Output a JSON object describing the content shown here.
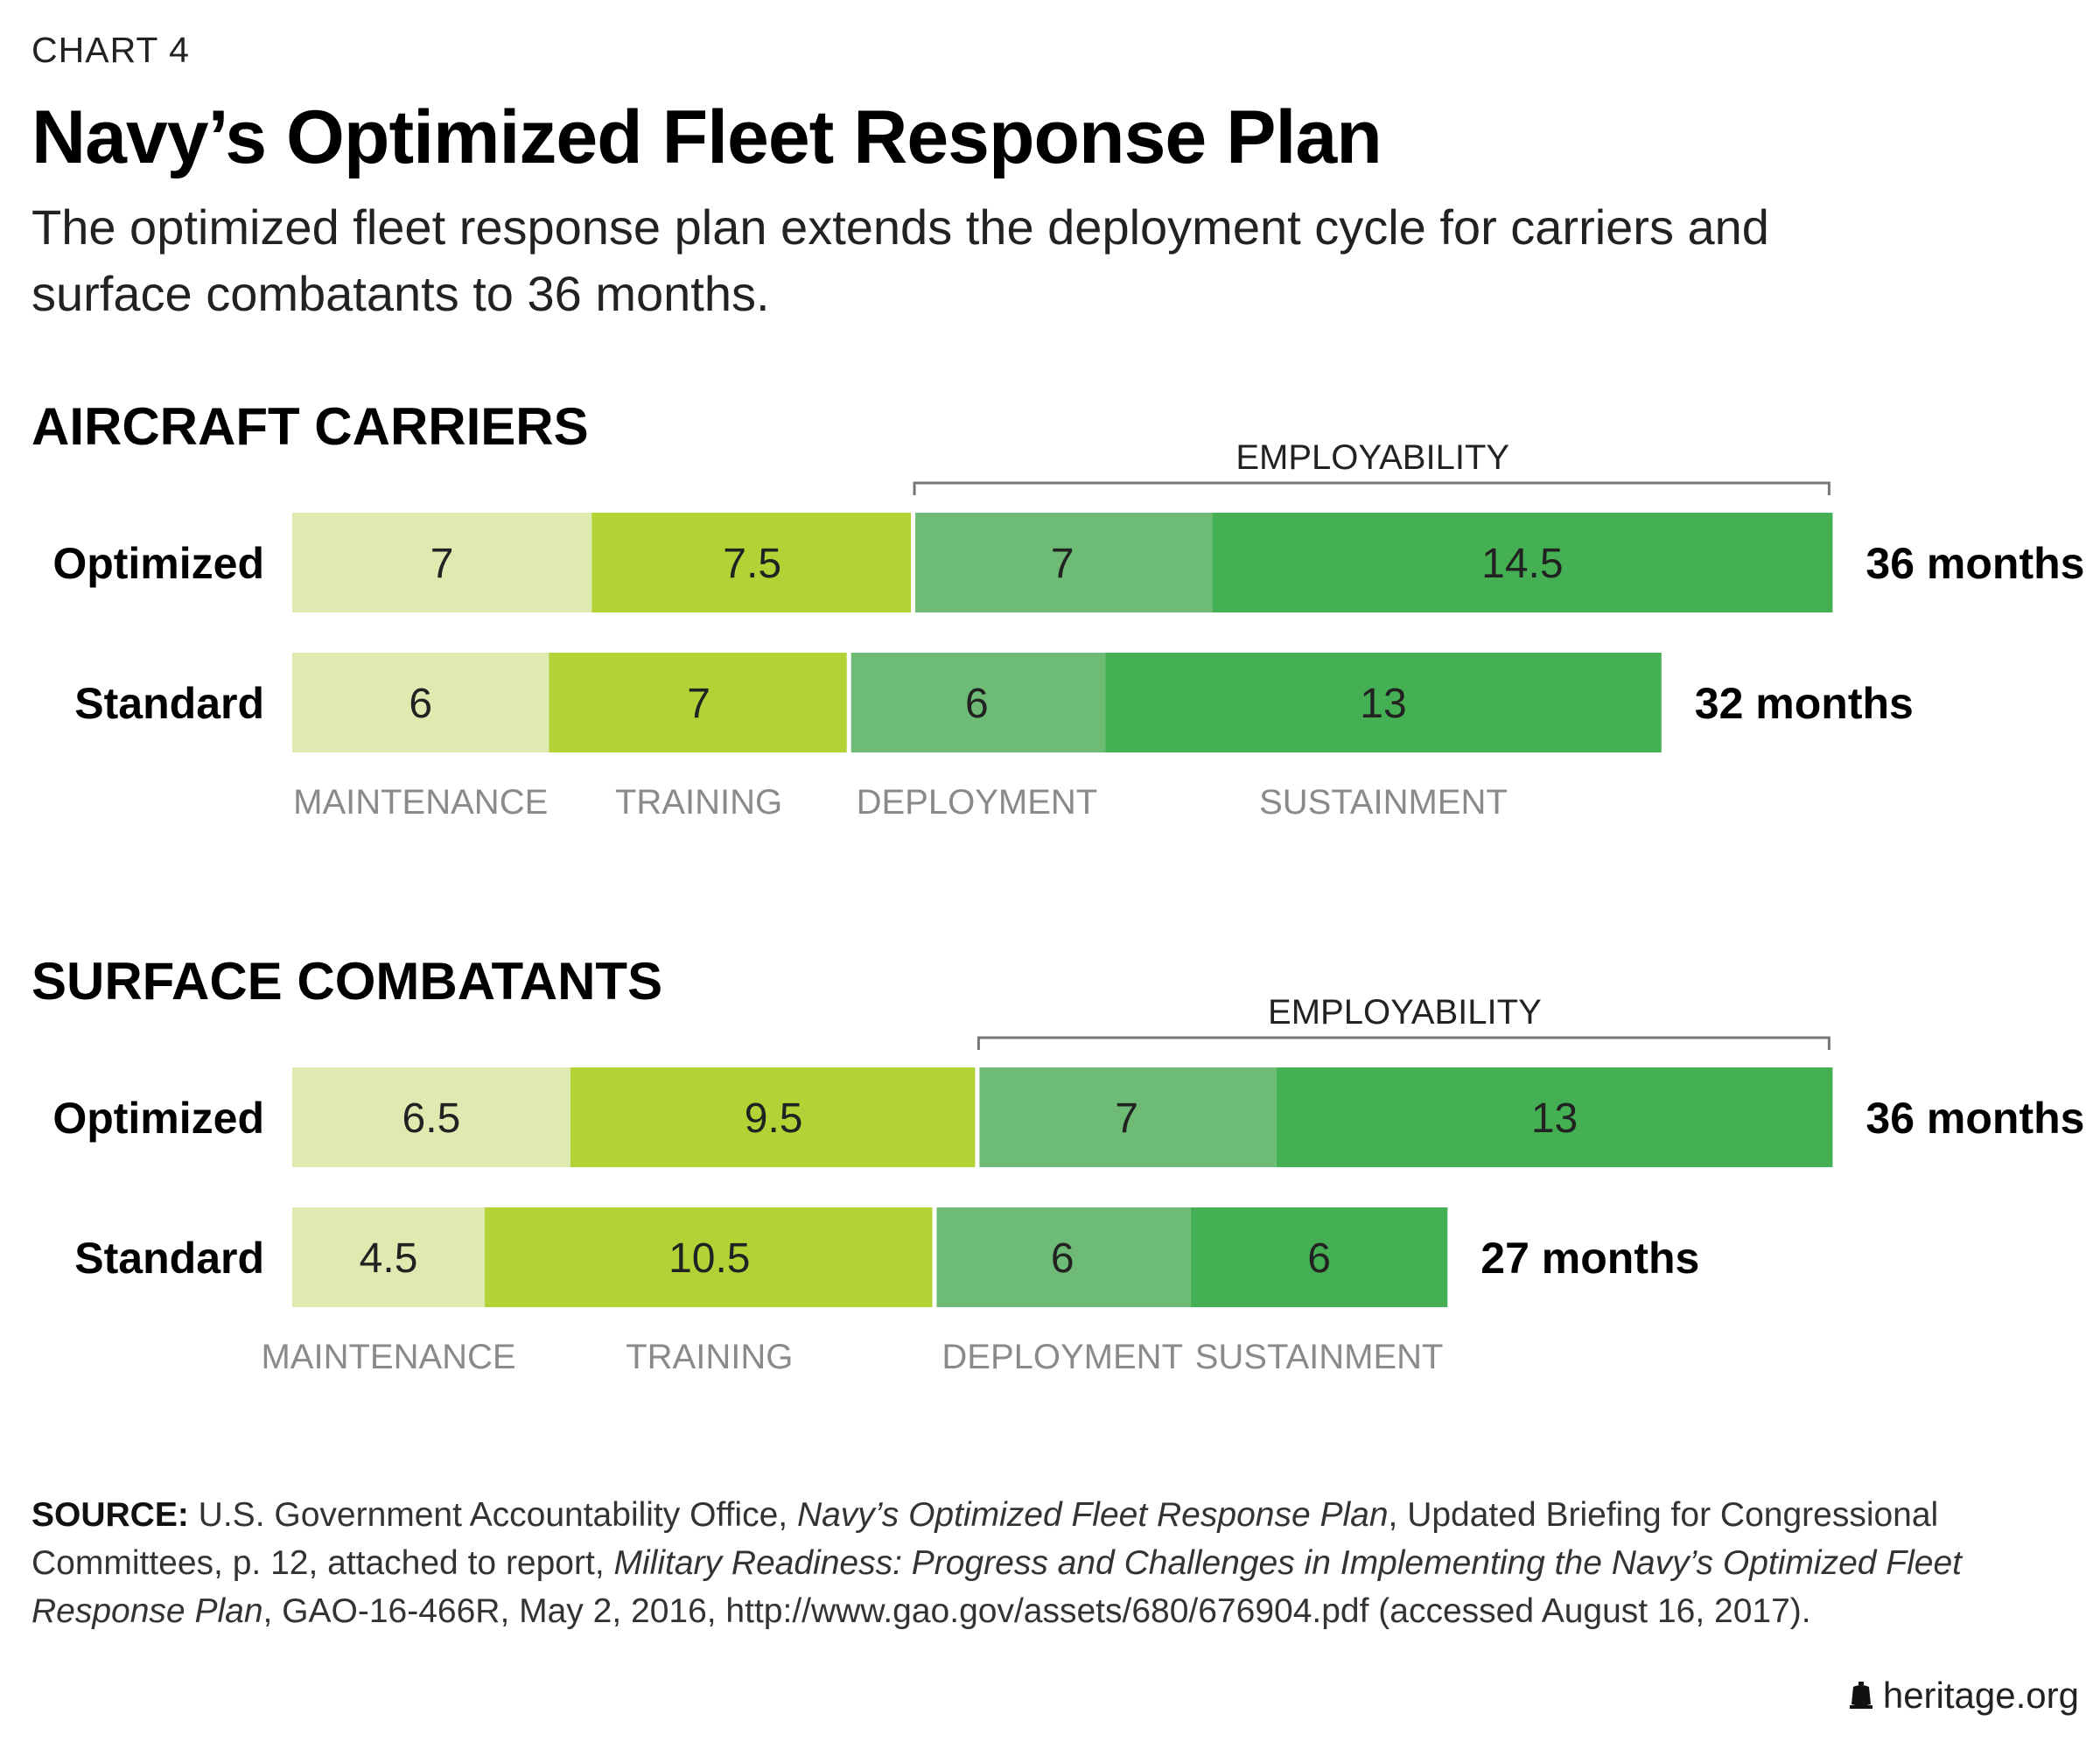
{
  "header": {
    "kicker": "CHART 4",
    "title": "Navy’s Optimized Fleet Response Plan",
    "subtitle": "The optimized fleet response plan extends the deployment cycle for carriers and surface combatants to 36 months."
  },
  "chart_data": [
    {
      "type": "bar",
      "orientation": "horizontal",
      "stacked": true,
      "title": "AIRCRAFT CARRIERS",
      "categories": [
        "Optimized",
        "Standard"
      ],
      "segment_names": [
        "MAINTENANCE",
        "TRAINING",
        "DEPLOYMENT",
        "SUSTAINMENT"
      ],
      "series": [
        {
          "name": "MAINTENANCE",
          "values": [
            7,
            6
          ],
          "color": "#dfeab0"
        },
        {
          "name": "TRAINING",
          "values": [
            7.5,
            7
          ],
          "color": "#b2d235"
        },
        {
          "name": "DEPLOYMENT",
          "values": [
            7,
            6
          ],
          "color": "#6dbb74"
        },
        {
          "name": "SUSTAINMENT",
          "values": [
            14.5,
            13
          ],
          "color": "#45b053"
        }
      ],
      "value_labels": [
        [
          "7",
          "7.5",
          "7",
          "14.5"
        ],
        [
          "6",
          "7",
          "6",
          "13"
        ]
      ],
      "totals": [
        "36 months",
        "32 months"
      ],
      "bracket_label": "EMPLOYABILITY",
      "xlim": [
        0,
        36
      ]
    },
    {
      "type": "bar",
      "orientation": "horizontal",
      "stacked": true,
      "title": "SURFACE COMBATANTS",
      "categories": [
        "Optimized",
        "Standard"
      ],
      "segment_names": [
        "MAINTENANCE",
        "TRAINING",
        "DEPLOYMENT",
        "SUSTAINMENT"
      ],
      "series": [
        {
          "name": "MAINTENANCE",
          "values": [
            6.5,
            4.5
          ],
          "color": "#dfeab0"
        },
        {
          "name": "TRAINING",
          "values": [
            9.5,
            10.5
          ],
          "color": "#b2d235"
        },
        {
          "name": "DEPLOYMENT",
          "values": [
            7,
            6
          ],
          "color": "#6dbb74"
        },
        {
          "name": "SUSTAINMENT",
          "values": [
            13,
            6
          ],
          "color": "#45b053"
        }
      ],
      "value_labels": [
        [
          "6.5",
          "9.5",
          "7",
          "13"
        ],
        [
          "4.5",
          "10.5",
          "6",
          "6"
        ]
      ],
      "totals": [
        "36 months",
        "27 months"
      ],
      "bracket_label": "EMPLOYABILITY",
      "xlim": [
        0,
        36
      ]
    }
  ],
  "source": {
    "label": "SOURCE:",
    "text_1": " U.S. Government Accountability Office, ",
    "italic_1": "Navy’s Optimized Fleet Response Plan",
    "text_2": ", Updated Briefing for Congressional Committees, p. 12, attached to report, ",
    "italic_2": "Military Readiness: Progress and Challenges in Implementing the Navy’s Optimized Fleet Response Plan",
    "text_3": ", GAO-16-466R, May 2, 2016, http://www.gao.gov/assets/680/676904.pdf (accessed August 16, 2017)."
  },
  "brand": {
    "text": "heritage.org"
  },
  "colors": {
    "label_gray": "#8a8a8a",
    "bracket": "#777777",
    "separator": "#ffffff"
  }
}
